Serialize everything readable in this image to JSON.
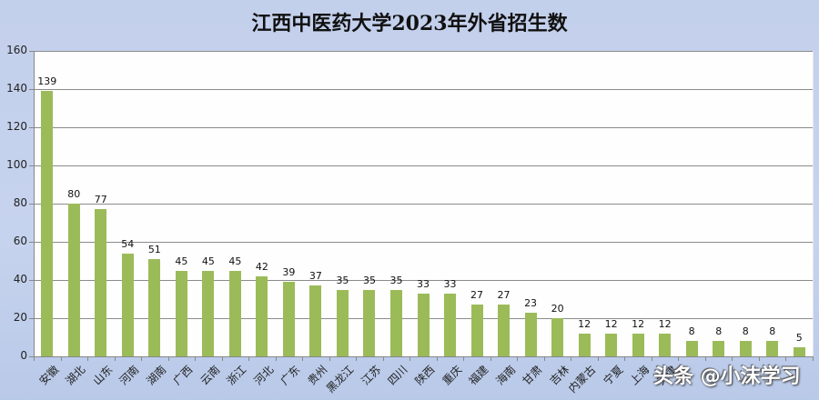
{
  "chart_data": {
    "type": "bar",
    "title": "江西中医药大学2023年外省招生数",
    "xlabel": "",
    "ylabel": "",
    "ylim": [
      0,
      160
    ],
    "yticks": [
      0,
      20,
      40,
      60,
      80,
      100,
      120,
      140,
      160
    ],
    "grid": true,
    "legend": null,
    "data_labels": true,
    "bar_color": "#9bbb59",
    "categories": [
      "安徽",
      "湖北",
      "山东",
      "河南",
      "湖南",
      "广西",
      "云南",
      "浙江",
      "河北",
      "广东",
      "贵州",
      "黑龙江",
      "江苏",
      "四川",
      "陕西",
      "重庆",
      "福建",
      "海南",
      "甘肃",
      "吉林",
      "内蒙古",
      "宁夏",
      "上海",
      "天津",
      "",
      "",
      "",
      "",
      ""
    ],
    "values": [
      139,
      80,
      77,
      54,
      51,
      45,
      45,
      45,
      42,
      39,
      37,
      35,
      35,
      35,
      33,
      33,
      27,
      27,
      23,
      20,
      12,
      12,
      12,
      12,
      8,
      8,
      8,
      8,
      5
    ]
  },
  "watermark": "头条 @小沫学习"
}
